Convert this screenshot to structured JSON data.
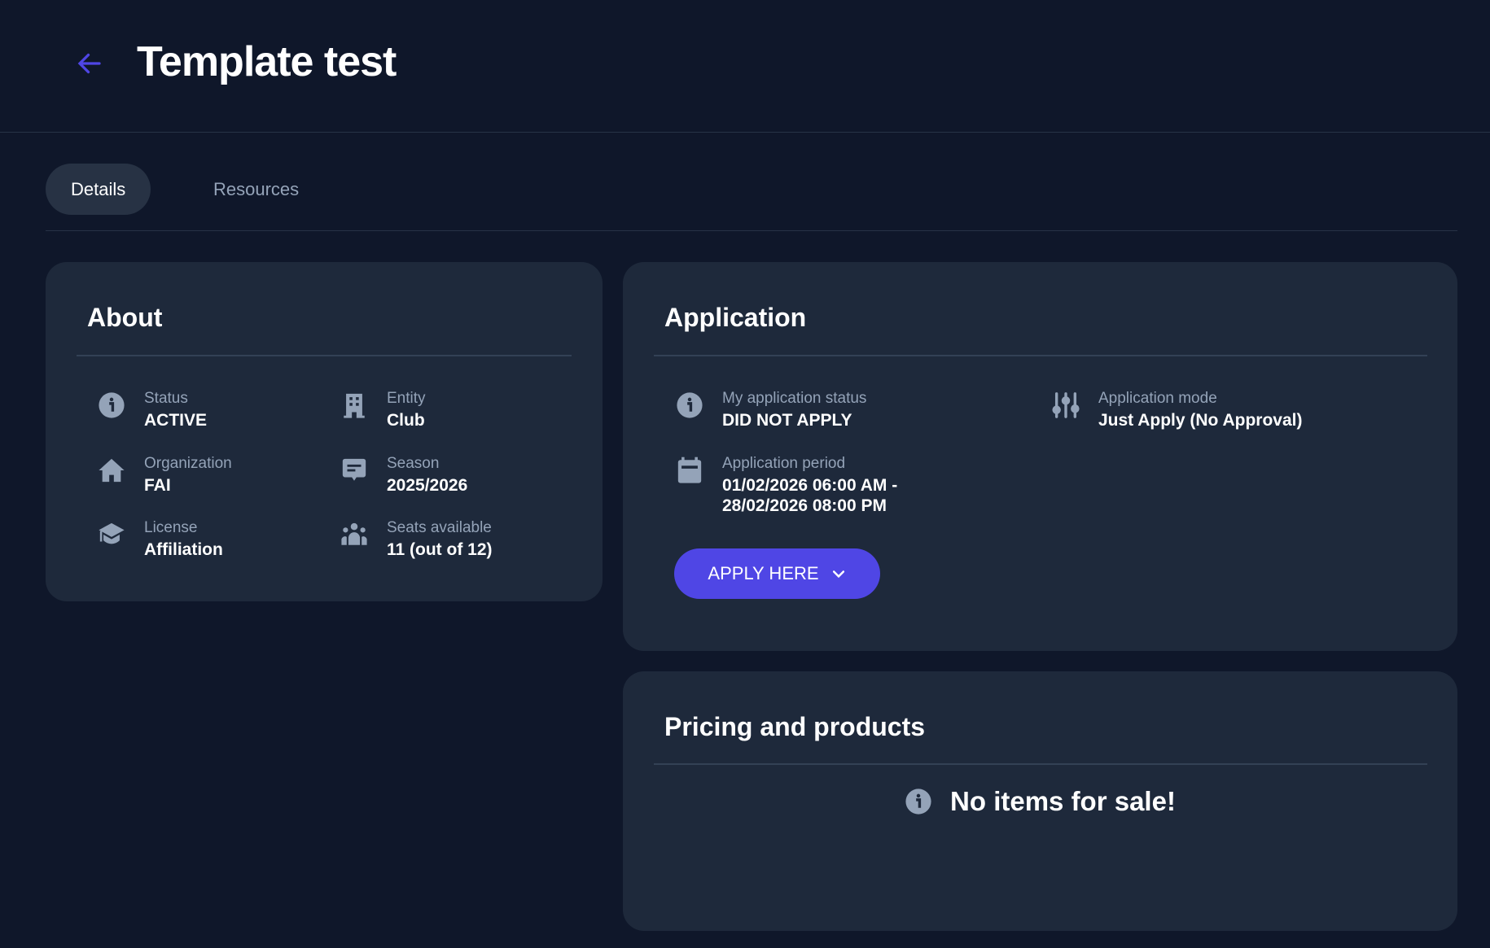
{
  "header": {
    "title": "Template test",
    "back_icon": "arrow-left-icon"
  },
  "tabs": [
    {
      "label": "Details",
      "active": true
    },
    {
      "label": "Resources",
      "active": false
    }
  ],
  "about": {
    "title": "About",
    "items": [
      {
        "label": "Status",
        "value": "ACTIVE",
        "icon": "info-icon"
      },
      {
        "label": "Entity",
        "value": "Club",
        "icon": "building-icon"
      },
      {
        "label": "Organization",
        "value": "FAI",
        "icon": "home-icon"
      },
      {
        "label": "Season",
        "value": "2025/2026",
        "icon": "message-icon"
      },
      {
        "label": "License",
        "value": "Affiliation",
        "icon": "graduation-cap-icon"
      },
      {
        "label": "Seats available",
        "value": "11 (out of 12)",
        "icon": "users-icon"
      }
    ]
  },
  "application": {
    "title": "Application",
    "status": {
      "label": "My application status",
      "value": "DID NOT APPLY",
      "icon": "info-icon"
    },
    "mode": {
      "label": "Application mode",
      "value": "Just Apply (No Approval)",
      "icon": "sliders-icon"
    },
    "period": {
      "label": "Application period",
      "value_start": "01/02/2026 06:00 AM -",
      "value_end": "28/02/2026 08:00 PM",
      "icon": "calendar-icon"
    },
    "apply_button": "APPLY HERE"
  },
  "pricing": {
    "title": "Pricing and products",
    "empty_message": "No items for sale!"
  },
  "colors": {
    "background": "#0f172a",
    "card": "#1e293b",
    "accent": "#4f46e5",
    "muted": "#94a3b8"
  }
}
